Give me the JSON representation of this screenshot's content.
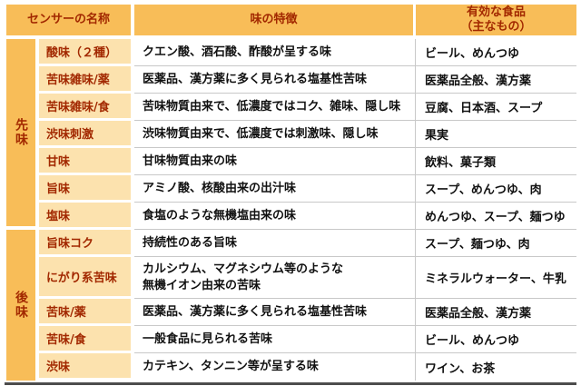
{
  "colors": {
    "header_bg": "#F8BD58",
    "group_bg": "#F8BD58",
    "sensor_bg": "#FCE2AE",
    "heading_text": "#A22800",
    "body_text": "#111111",
    "grid_line": "#C8C8C8",
    "bottom_bar": "#4D4D4D",
    "page_bg": "#FFFFFF"
  },
  "header": {
    "col_sensor": "センサーの名称",
    "col_feature": "味の特徴",
    "col_food_line1": "有効な食品",
    "col_food_line2": "（主なもの）"
  },
  "groups": [
    {
      "label": "先味",
      "rowspan": 7
    },
    {
      "label": "後味",
      "rowspan": 5
    }
  ],
  "rows": [
    {
      "group": "先味",
      "sensor": "酸味（２種）",
      "feature": "クエン酸、酒石酸、酢酸が呈する味",
      "food": "ビール、めんつゆ"
    },
    {
      "group": "先味",
      "sensor": "苦味雑味/薬",
      "feature": "医薬品、漢方薬に多く見られる塩基性苦味",
      "food": "医薬品全般、漢方薬"
    },
    {
      "group": "先味",
      "sensor": "苦味雑味/食",
      "feature": "苦味物質由来で、低濃度ではコク、雑味、隠し味",
      "food": "豆腐、日本酒、スープ"
    },
    {
      "group": "先味",
      "sensor": "渋味刺激",
      "feature": "渋味物質由来で、低濃度では刺激味、隠し味",
      "food": "果実"
    },
    {
      "group": "先味",
      "sensor": "甘味",
      "feature": "甘味物質由来の味",
      "food": "飲料、菓子類"
    },
    {
      "group": "先味",
      "sensor": "旨味",
      "feature": "アミノ酸、核酸由来の出汁味",
      "food": "スープ、めんつゆ、肉"
    },
    {
      "group": "先味",
      "sensor": "塩味",
      "feature": "食塩のような無機塩由来の味",
      "food": "めんつゆ、スープ、麺つゆ"
    },
    {
      "group": "後味",
      "sensor": "旨味コク",
      "feature": "持続性のある旨味",
      "food": "スープ、麺つゆ、肉"
    },
    {
      "group": "後味",
      "sensor": "にがり系苦味",
      "feature": "カルシウム、マグネシウム等のような\n無機イオン由来の苦味",
      "food": "ミネラルウォーター、牛乳",
      "tall": true
    },
    {
      "group": "後味",
      "sensor": "苦味/薬",
      "feature": "医薬品、漢方薬に多く見られる塩基性苦味",
      "food": "医薬品全般、漢方薬"
    },
    {
      "group": "後味",
      "sensor": "苦味/食",
      "feature": "一般食品に見られる苦味",
      "food": "ビール、めんつゆ"
    },
    {
      "group": "後味",
      "sensor": "渋味",
      "feature": "カテキン、タンニン等が呈する味",
      "food": "ワイン、お茶"
    }
  ]
}
